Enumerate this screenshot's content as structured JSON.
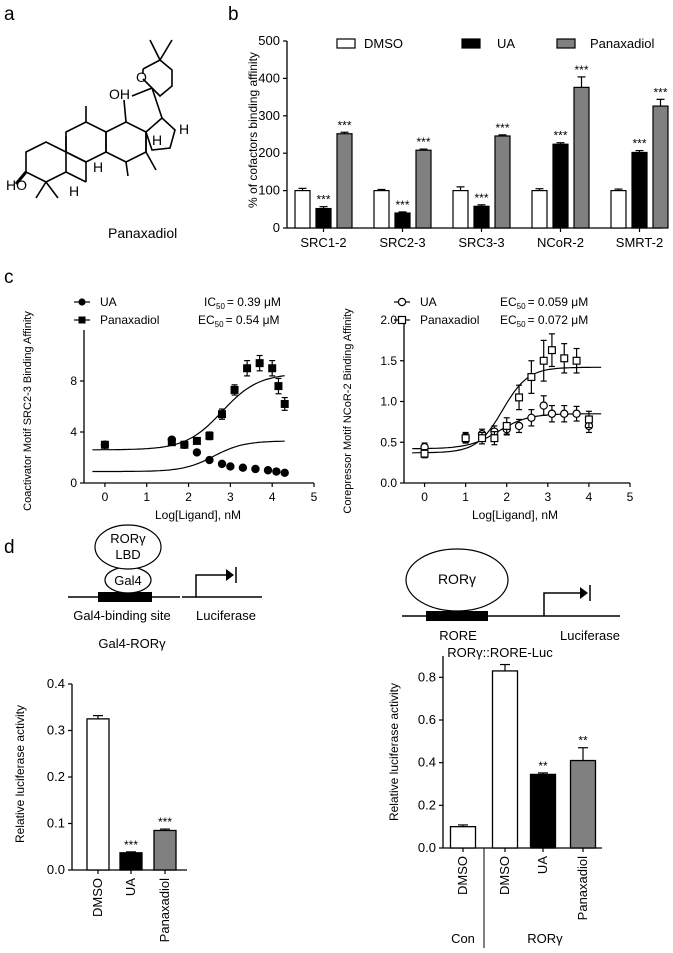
{
  "panel_labels": {
    "a": "a",
    "b": "b",
    "c": "c",
    "d": "d"
  },
  "panel_a": {
    "compound_name": "Panaxadiol",
    "atom_labels": [
      "O",
      "OH",
      "HO",
      "H",
      "H",
      "H",
      "H"
    ]
  },
  "stars": {
    "three": "***",
    "two": "**"
  },
  "chart_data": [
    {
      "id": "b",
      "type": "bar",
      "ylabel": "% of cofactors binding affinity",
      "ylim": [
        0,
        500
      ],
      "yticks": [
        "0",
        "100",
        "200",
        "300",
        "400",
        "500"
      ],
      "categories": [
        "SRC1-2",
        "SRC2-3",
        "SRC3-3",
        "NCoR-2",
        "SMRT-2"
      ],
      "legend": [
        "DMSO",
        "UA",
        "Panaxadiol"
      ],
      "series": [
        {
          "name": "DMSO",
          "color": "#ffffff",
          "values": [
            100,
            100,
            100,
            100,
            100
          ],
          "errors": [
            6,
            3,
            10,
            5,
            4
          ],
          "sig": [
            "",
            "",
            "",
            "",
            ""
          ]
        },
        {
          "name": "UA",
          "color": "#000000",
          "values": [
            52,
            40,
            58,
            224,
            202
          ],
          "errors": [
            5,
            3,
            4,
            4,
            5
          ],
          "sig": [
            "***",
            "***",
            "***",
            "***",
            "***"
          ]
        },
        {
          "name": "Panaxadiol",
          "color": "#808080",
          "values": [
            252,
            208,
            246,
            376,
            326
          ],
          "errors": [
            4,
            3,
            3,
            28,
            18
          ],
          "sig": [
            "***",
            "***",
            "***",
            "***",
            "***"
          ]
        }
      ]
    },
    {
      "id": "c_left",
      "type": "scatter",
      "xlabel": "Log[Ligand], nM",
      "ylabel": "Coactivator Motif SRC2-3 Binding Affinity",
      "xlim": [
        -0.5,
        5
      ],
      "ylim": [
        0,
        12
      ],
      "xticks": [
        "0",
        "1",
        "2",
        "3",
        "4",
        "5"
      ],
      "yticks": [
        "0",
        "4",
        "8"
      ],
      "series": [
        {
          "name": "UA",
          "marker": "circle-filled",
          "stat_label": "IC",
          "stat_sub": "50",
          "stat_value": "= 0.39 μM",
          "x": [
            0,
            1.6,
            1.9,
            2.2,
            2.5,
            2.8,
            3.0,
            3.3,
            3.6,
            3.9,
            4.1,
            4.3
          ],
          "y": [
            3.0,
            3.4,
            3.0,
            2.4,
            1.8,
            1.5,
            1.3,
            1.2,
            1.1,
            1.0,
            0.9,
            0.8
          ],
          "err": [
            0.2,
            0.2,
            0.2,
            0.15,
            0.1,
            0.1,
            0.1,
            0.1,
            0.1,
            0.1,
            0.1,
            0.1
          ],
          "fit": {
            "bottom": 0.9,
            "top": 3.3,
            "logec50": 2.6,
            "hill": 1.2
          }
        },
        {
          "name": "Panaxadiol",
          "marker": "square-filled",
          "stat_label": "EC",
          "stat_sub": "50",
          "stat_value": "= 0.54 μM",
          "x": [
            0,
            1.6,
            1.9,
            2.2,
            2.5,
            2.8,
            3.1,
            3.4,
            3.7,
            4.0,
            4.15,
            4.3
          ],
          "y": [
            3.0,
            3.2,
            3.0,
            3.3,
            3.7,
            5.4,
            7.3,
            9.0,
            9.4,
            9.0,
            7.6,
            6.2
          ],
          "err": [
            0.2,
            0.2,
            0.2,
            0.2,
            0.3,
            0.4,
            0.4,
            0.6,
            0.6,
            0.6,
            0.6,
            0.5
          ],
          "fit": {
            "bottom": 2.6,
            "top": 8.6,
            "logec50": 2.8,
            "hill": 1.0
          }
        }
      ]
    },
    {
      "id": "c_right",
      "type": "scatter",
      "xlabel": "Log[Ligand], nM",
      "ylabel": "Corepressor Motif NCoR-2 Binding Affinity",
      "xlim": [
        -0.5,
        5
      ],
      "ylim": [
        0,
        2.0
      ],
      "xticks": [
        "0",
        "1",
        "2",
        "3",
        "4",
        "5"
      ],
      "yticks": [
        "0.0",
        "0.5",
        "1.0",
        "1.5",
        "2.0"
      ],
      "series": [
        {
          "name": "UA",
          "marker": "circle-open",
          "stat_label": "EC",
          "stat_sub": "50",
          "stat_value": "= 0.059 μM",
          "x": [
            0,
            1.0,
            1.4,
            1.7,
            2.0,
            2.3,
            2.6,
            2.9,
            3.1,
            3.4,
            3.7,
            4.0
          ],
          "y": [
            0.44,
            0.56,
            0.6,
            0.63,
            0.66,
            0.7,
            0.8,
            0.95,
            0.85,
            0.85,
            0.85,
            0.7
          ],
          "err": [
            0.05,
            0.06,
            0.06,
            0.07,
            0.07,
            0.08,
            0.1,
            0.12,
            0.1,
            0.1,
            0.09,
            0.08
          ],
          "fit": {
            "bottom": 0.42,
            "top": 0.85,
            "logec50": 1.8,
            "hill": 1.2
          }
        },
        {
          "name": "Panaxadiol",
          "marker": "square-open",
          "stat_label": "EC",
          "stat_sub": "50",
          "stat_value": "= 0.072 μM",
          "x": [
            0,
            1.0,
            1.4,
            1.7,
            2.0,
            2.3,
            2.6,
            2.9,
            3.1,
            3.4,
            3.7,
            4.0
          ],
          "y": [
            0.36,
            0.55,
            0.55,
            0.55,
            0.7,
            1.05,
            1.3,
            1.5,
            1.63,
            1.53,
            1.5,
            0.78
          ],
          "err": [
            0.05,
            0.06,
            0.07,
            0.08,
            0.1,
            0.15,
            0.2,
            0.25,
            0.2,
            0.18,
            0.15,
            0.1
          ],
          "fit": {
            "bottom": 0.37,
            "top": 1.42,
            "logec50": 1.9,
            "hill": 1.4
          }
        }
      ]
    },
    {
      "id": "d_left",
      "type": "bar",
      "title": "Gal4-RORγ",
      "ylabel": "Relative luciferase activity",
      "ylim": [
        0,
        0.4
      ],
      "yticks": [
        "0.0",
        "0.1",
        "0.2",
        "0.3",
        "0.4"
      ],
      "categories": [
        "DMSO",
        "UA",
        "Panaxadiol"
      ],
      "values": [
        0.325,
        0.037,
        0.085
      ],
      "errors": [
        0.007,
        0.002,
        0.003
      ],
      "colors": [
        "#ffffff",
        "#000000",
        "#808080"
      ],
      "sig": [
        "",
        "***",
        "***"
      ]
    },
    {
      "id": "d_right",
      "type": "bar",
      "ylabel": "Relative luciferase activity",
      "ylim": [
        0,
        0.9
      ],
      "yticks": [
        "0.0",
        "0.2",
        "0.4",
        "0.6",
        "0.8"
      ],
      "categories": [
        "DMSO",
        "DMSO",
        "UA",
        "Panaxadiol"
      ],
      "values": [
        0.1,
        0.83,
        0.345,
        0.41
      ],
      "errors": [
        0.008,
        0.03,
        0.007,
        0.06
      ],
      "colors": [
        "#ffffff",
        "#ffffff",
        "#000000",
        "#808080"
      ],
      "sig": [
        "",
        "",
        "**",
        "**"
      ],
      "groups": [
        {
          "label": "Con"
        },
        {
          "label": "RORγ"
        }
      ]
    }
  ],
  "schematic_left": {
    "lbd_line1": "RORγ",
    "lbd_line2": "LBD",
    "gal4": "Gal4",
    "site": "Gal4-binding site",
    "reporter": "Luciferase"
  },
  "schematic_right": {
    "receptor": "RORγ",
    "element": "RORE",
    "reporter": "Luciferase",
    "construct": "RORγ::RORE-Luc"
  }
}
